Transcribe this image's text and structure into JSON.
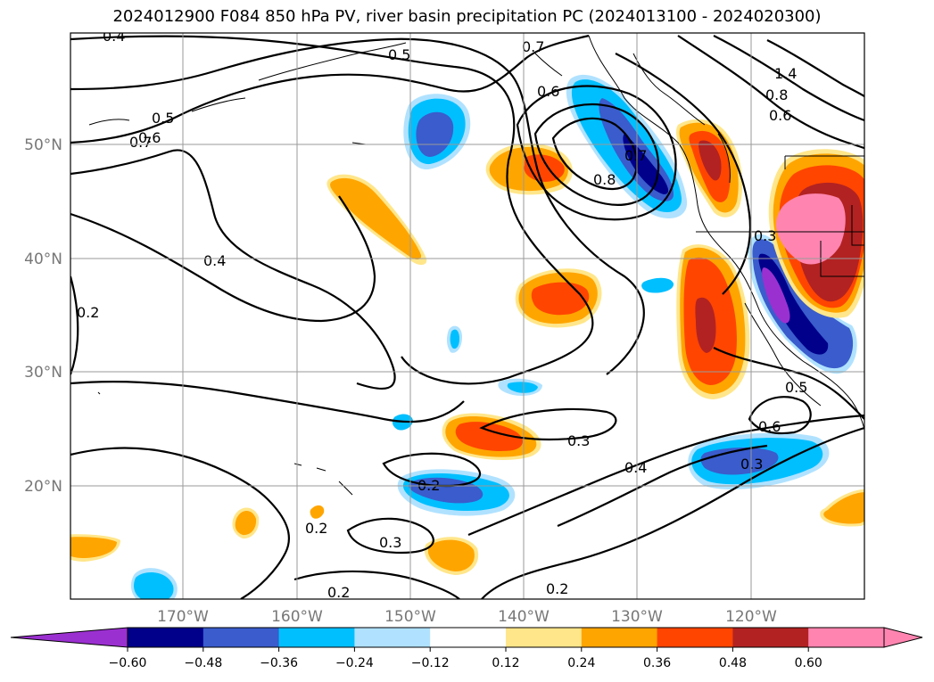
{
  "title": "2024012900 F084 850 hPa PV, river basin precipitation PC (2024013100 - 2024020300)",
  "lat_labels": [
    "50°N",
    "40°N",
    "30°N",
    "20°N"
  ],
  "lon_labels": [
    "170°W",
    "160°W",
    "150°W",
    "140°W",
    "130°W",
    "120°W"
  ],
  "contour_labels": [
    "0.4",
    "0.5",
    "0.6",
    "0.7",
    "0.7",
    "0.6",
    "0.5",
    "0.8",
    "0.7",
    "0.4",
    "0.2",
    "0.3",
    "0.5",
    "0.6",
    "0.3",
    "0.4",
    "0.3",
    "0.2",
    "0.2",
    "0.3",
    "0.2",
    "0.2",
    "1.4",
    "0.8",
    "0.6"
  ],
  "colorbar": {
    "ticks": [
      "−0.60",
      "−0.48",
      "−0.36",
      "−0.24",
      "−0.12",
      "0.12",
      "0.24",
      "0.36",
      "0.48",
      "0.60"
    ],
    "colors": [
      "#9b30d0",
      "#00008b",
      "#3a5ccc",
      "#00bfff",
      "#b0e2ff",
      "#ffffff",
      "#ffe68a",
      "#ffa500",
      "#ff4500",
      "#b22222",
      "#ff85b0",
      "#ff85b0"
    ]
  }
}
